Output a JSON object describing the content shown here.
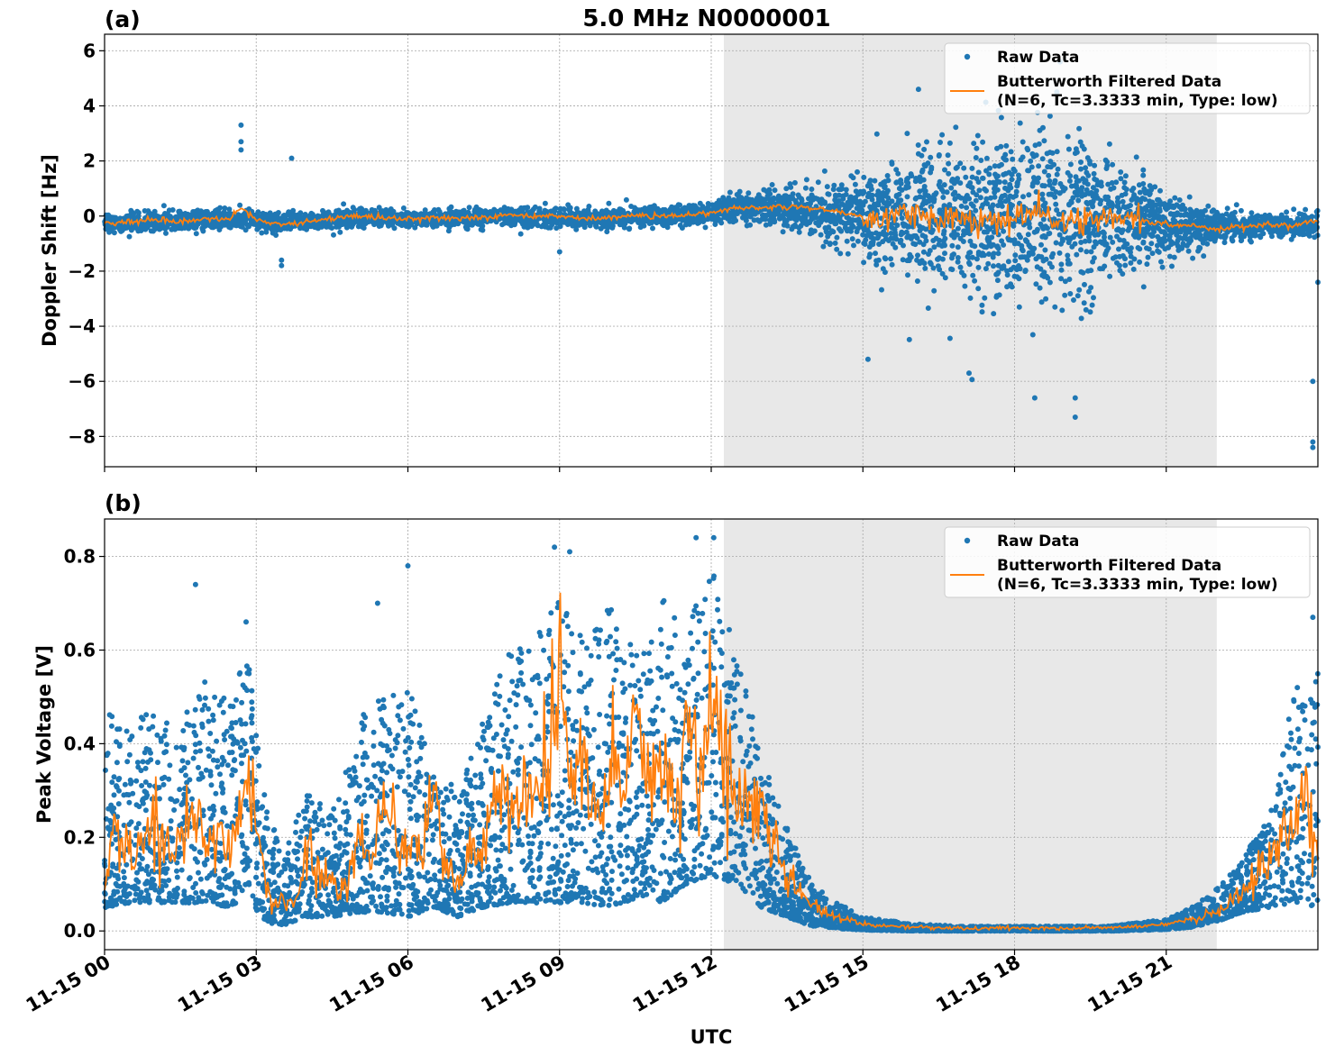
{
  "figure": {
    "title": "5.0 MHz N0000001",
    "xlabel": "UTC"
  },
  "chart_data": [
    {
      "type": "scatter",
      "panel_label": "(a)",
      "title": "5.0 MHz N0000001",
      "xlabel": "",
      "ylabel": "Doppler Shift [Hz]",
      "x_unit": "hours UTC on 11-15",
      "xlim": [
        0,
        24
      ],
      "ylim": [
        -9.1,
        6.6
      ],
      "yticks": [
        6,
        4,
        2,
        0,
        -2,
        -4,
        -6,
        -8
      ],
      "ytick_labels": [
        "6",
        "4",
        "2",
        "0",
        "−2",
        "−4",
        "−6",
        "−8"
      ],
      "grid": true,
      "shaded_region": [
        12.25,
        22.0
      ],
      "legend": {
        "placement": "top-right",
        "entries": [
          "Raw Data",
          "Butterworth Filtered Data",
          "(N=6, Tc=3.3333 min, Type: low)"
        ]
      },
      "series": [
        {
          "name": "Raw Data",
          "kind": "scatter",
          "color": "#1f77b4",
          "envelope_x": [
            0,
            1,
            2,
            2.7,
            3,
            4,
            5,
            6,
            7,
            8,
            9,
            10,
            11,
            12,
            12.5,
            13,
            14,
            15,
            16,
            17,
            18,
            19,
            19.5,
            20,
            21,
            22,
            23,
            24
          ],
          "envelope_center": [
            -0.3,
            -0.2,
            -0.15,
            -0.1,
            -0.2,
            -0.2,
            -0.05,
            -0.1,
            -0.1,
            0.0,
            -0.05,
            -0.05,
            0.0,
            0.1,
            0.3,
            0.3,
            0.2,
            0.0,
            0.0,
            -0.05,
            -0.1,
            -0.1,
            -0.1,
            -0.2,
            -0.3,
            -0.4,
            -0.35,
            -0.3
          ],
          "envelope_halfwidth": [
            0.35,
            0.3,
            0.3,
            0.35,
            0.3,
            0.3,
            0.3,
            0.25,
            0.25,
            0.3,
            0.3,
            0.3,
            0.3,
            0.35,
            0.4,
            0.5,
            0.7,
            1.3,
            2.0,
            2.6,
            2.9,
            2.8,
            2.5,
            2.0,
            0.9,
            0.5,
            0.35,
            0.4
          ],
          "outliers": [
            {
              "x": 2.7,
              "y": 3.3
            },
            {
              "x": 2.7,
              "y": 2.7
            },
            {
              "x": 2.7,
              "y": 2.4
            },
            {
              "x": 3.7,
              "y": 2.1
            },
            {
              "x": 3.5,
              "y": -1.8
            },
            {
              "x": 3.5,
              "y": -1.6
            },
            {
              "x": 9.0,
              "y": -1.3
            },
            {
              "x": 15.1,
              "y": -5.2
            },
            {
              "x": 17.1,
              "y": -5.7
            },
            {
              "x": 18.4,
              "y": -6.6
            },
            {
              "x": 19.2,
              "y": -7.3
            },
            {
              "x": 19.2,
              "y": -6.6
            },
            {
              "x": 16.1,
              "y": 4.6
            },
            {
              "x": 18.9,
              "y": 5.6
            },
            {
              "x": 23.9,
              "y": -6.0
            },
            {
              "x": 23.9,
              "y": -8.2
            },
            {
              "x": 23.9,
              "y": -8.4
            },
            {
              "x": 24.0,
              "y": -2.4
            }
          ]
        },
        {
          "name": "Butterworth Filtered Data",
          "kind": "line",
          "color": "#ff7f0e",
          "x": [
            0,
            0.5,
            1,
            1.5,
            2,
            2.5,
            2.7,
            3,
            3.5,
            4,
            4.5,
            5,
            5.5,
            6,
            6.5,
            7,
            7.5,
            8,
            8.5,
            9,
            9.5,
            10,
            10.5,
            11,
            11.5,
            12,
            12.5,
            13,
            13.5,
            14,
            14.5,
            15,
            15.5,
            16,
            16.5,
            17,
            17.5,
            18,
            18.5,
            19,
            19.5,
            20,
            20.5,
            21,
            21.5,
            22,
            22.5,
            23,
            23.5,
            24
          ],
          "y": [
            -0.25,
            -0.2,
            -0.15,
            -0.2,
            -0.15,
            -0.1,
            0.3,
            -0.15,
            -0.3,
            -0.2,
            -0.1,
            0.0,
            -0.05,
            -0.1,
            -0.05,
            -0.1,
            -0.05,
            0.05,
            0.0,
            0.0,
            -0.1,
            -0.05,
            0.0,
            0.0,
            0.05,
            0.1,
            0.3,
            0.3,
            0.35,
            0.3,
            0.15,
            0.0,
            -0.2,
            0.2,
            -0.1,
            0.0,
            -0.3,
            -0.1,
            0.2,
            -0.3,
            0.0,
            -0.2,
            -0.15,
            -0.3,
            -0.35,
            -0.45,
            -0.4,
            -0.3,
            -0.35,
            -0.15
          ]
        }
      ]
    },
    {
      "type": "scatter",
      "panel_label": "(b)",
      "title": "",
      "xlabel": "UTC",
      "ylabel": "Peak Voltage [V]",
      "x_unit": "hours UTC on 11-15",
      "xlim": [
        0,
        24
      ],
      "ylim": [
        -0.04,
        0.88
      ],
      "yticks": [
        0.0,
        0.2,
        0.4,
        0.6,
        0.8
      ],
      "ytick_labels": [
        "0.0",
        "0.2",
        "0.4",
        "0.6",
        "0.8"
      ],
      "xticks": [
        0,
        3,
        6,
        9,
        12,
        15,
        18,
        21
      ],
      "xtick_labels": [
        "11-15 00",
        "11-15 03",
        "11-15 06",
        "11-15 09",
        "11-15 12",
        "11-15 15",
        "11-15 18",
        "11-15 21"
      ],
      "grid": true,
      "shaded_region": [
        12.25,
        22.0
      ],
      "legend": {
        "placement": "top-right",
        "entries": [
          "Raw Data",
          "Butterworth Filtered Data",
          "(N=6, Tc=3.3333 min, Type: low)"
        ]
      },
      "series": [
        {
          "name": "Raw Data",
          "kind": "scatter",
          "color": "#1f77b4",
          "envelope_x": [
            0,
            0.5,
            1,
            1.5,
            2,
            2.5,
            2.8,
            3.2,
            3.5,
            4,
            4.5,
            5,
            5.5,
            6,
            6.5,
            7,
            7.5,
            8,
            8.5,
            9,
            9.5,
            10,
            10.5,
            11,
            11.5,
            12,
            12.5,
            13,
            13.5,
            14,
            14.5,
            15,
            16,
            17,
            18,
            19,
            20,
            21,
            21.5,
            22,
            22.5,
            23,
            23.5,
            24
          ],
          "envelope_low": [
            0.05,
            0.06,
            0.06,
            0.06,
            0.06,
            0.05,
            0.07,
            0.02,
            0.01,
            0.03,
            0.03,
            0.04,
            0.04,
            0.03,
            0.05,
            0.03,
            0.05,
            0.06,
            0.06,
            0.06,
            0.06,
            0.05,
            0.07,
            0.06,
            0.1,
            0.12,
            0.1,
            0.05,
            0.03,
            0.01,
            0.005,
            0.002,
            0.0,
            0.0,
            0.0,
            0.0,
            0.0,
            0.003,
            0.008,
            0.02,
            0.04,
            0.05,
            0.06,
            0.05
          ],
          "envelope_high": [
            0.48,
            0.42,
            0.5,
            0.45,
            0.55,
            0.48,
            0.62,
            0.3,
            0.15,
            0.3,
            0.25,
            0.45,
            0.5,
            0.55,
            0.35,
            0.3,
            0.45,
            0.6,
            0.62,
            0.72,
            0.62,
            0.7,
            0.6,
            0.72,
            0.65,
            0.78,
            0.6,
            0.38,
            0.22,
            0.1,
            0.06,
            0.03,
            0.015,
            0.01,
            0.01,
            0.01,
            0.012,
            0.025,
            0.05,
            0.09,
            0.15,
            0.25,
            0.5,
            0.62
          ],
          "outliers": [
            {
              "x": 1.8,
              "y": 0.74
            },
            {
              "x": 2.8,
              "y": 0.66
            },
            {
              "x": 5.4,
              "y": 0.7
            },
            {
              "x": 6.0,
              "y": 0.78
            },
            {
              "x": 8.9,
              "y": 0.82
            },
            {
              "x": 9.2,
              "y": 0.81
            },
            {
              "x": 11.7,
              "y": 0.84
            },
            {
              "x": 12.05,
              "y": 0.84
            },
            {
              "x": 23.9,
              "y": 0.67
            }
          ]
        },
        {
          "name": "Butterworth Filtered Data",
          "kind": "line",
          "color": "#ff7f0e",
          "x": [
            0,
            0.2,
            0.5,
            0.8,
            1,
            1.3,
            1.5,
            1.8,
            2,
            2.3,
            2.5,
            2.8,
            3,
            3.2,
            3.5,
            3.8,
            4,
            4.3,
            4.5,
            4.8,
            5,
            5.3,
            5.5,
            5.8,
            6,
            6.3,
            6.5,
            6.8,
            7,
            7.3,
            7.5,
            7.8,
            8,
            8.3,
            8.5,
            8.8,
            9,
            9.3,
            9.5,
            9.8,
            10,
            10.3,
            10.5,
            10.8,
            11,
            11.3,
            11.5,
            11.8,
            12,
            12.3,
            12.5,
            12.8,
            13,
            13.3,
            13.5,
            13.8,
            14,
            14.5,
            15,
            15.5,
            16,
            17,
            18,
            19,
            20,
            20.5,
            21,
            21.5,
            22,
            22.3,
            22.5,
            22.8,
            23,
            23.2,
            23.5,
            23.7,
            24
          ],
          "y": [
            0.1,
            0.25,
            0.15,
            0.2,
            0.25,
            0.16,
            0.2,
            0.28,
            0.18,
            0.2,
            0.15,
            0.35,
            0.22,
            0.1,
            0.06,
            0.07,
            0.18,
            0.12,
            0.1,
            0.08,
            0.2,
            0.15,
            0.25,
            0.18,
            0.2,
            0.18,
            0.3,
            0.12,
            0.1,
            0.2,
            0.15,
            0.35,
            0.25,
            0.3,
            0.3,
            0.4,
            0.5,
            0.3,
            0.35,
            0.22,
            0.4,
            0.3,
            0.45,
            0.3,
            0.35,
            0.25,
            0.45,
            0.35,
            0.52,
            0.35,
            0.3,
            0.3,
            0.25,
            0.18,
            0.12,
            0.08,
            0.05,
            0.03,
            0.015,
            0.01,
            0.008,
            0.006,
            0.006,
            0.006,
            0.008,
            0.01,
            0.015,
            0.025,
            0.04,
            0.06,
            0.08,
            0.12,
            0.15,
            0.2,
            0.25,
            0.3,
            0.2
          ]
        }
      ]
    }
  ]
}
